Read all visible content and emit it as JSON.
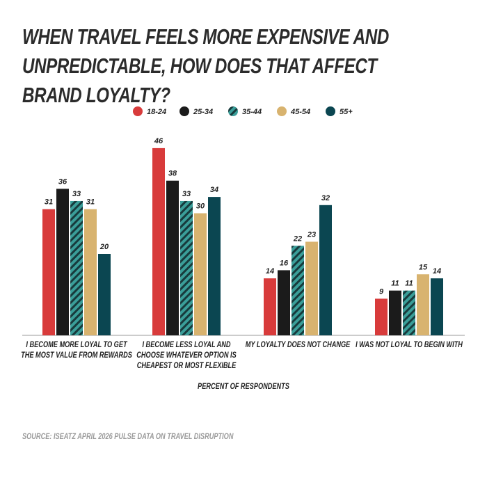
{
  "chart_data": {
    "type": "bar",
    "title": "WHEN TRAVEL FEELS MORE EXPENSIVE AND UNPREDICTABLE, HOW DOES THAT AFFECT BRAND LOYALTY?",
    "categories": [
      "I BECOME MORE LOYAL TO GET THE MOST VALUE FROM REWARDS",
      "I BECOME LESS LOYAL AND CHOOSE WHATEVER OPTION IS CHEAPEST OR MOST FLEXIBLE",
      "MY LOYALTY DOES NOT CHANGE",
      "I WAS NOT LOYAL TO BEGIN WITH"
    ],
    "series": [
      {
        "name": "18-24",
        "color": "#d83b3b",
        "values": [
          31,
          46,
          14,
          9
        ]
      },
      {
        "name": "25-34",
        "color": "#1b1b1b",
        "values": [
          36,
          38,
          16,
          11
        ]
      },
      {
        "name": "35-44",
        "color": "#3a9e99",
        "hatch": true,
        "values": [
          33,
          33,
          22,
          11
        ]
      },
      {
        "name": "45-54",
        "color": "#d8b36f",
        "values": [
          31,
          30,
          23,
          15
        ]
      },
      {
        "name": "55+",
        "color": "#0b4651",
        "values": [
          20,
          34,
          32,
          14
        ]
      }
    ],
    "x_label": "PERCENT OF RESPONDENTS",
    "source": "SOURCE: ISEATZ APRIL 2026 PULSE DATA ON TRAVEL DISRUPTION"
  }
}
